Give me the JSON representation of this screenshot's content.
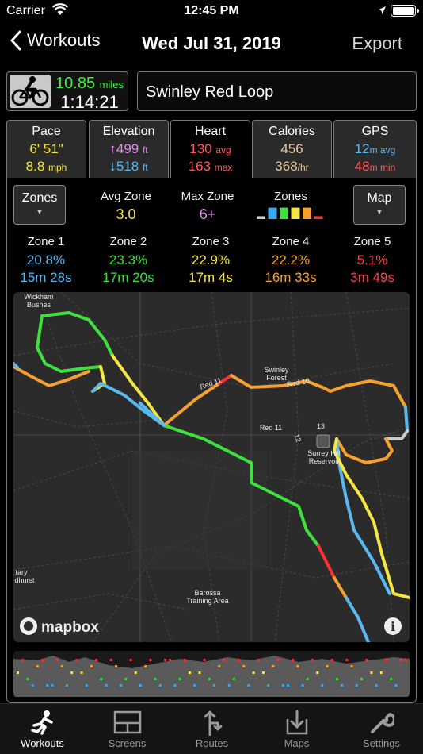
{
  "status_bar": {
    "carrier": "Carrier",
    "time": "12:45 PM"
  },
  "nav": {
    "back_label": "Workouts",
    "title": "Wed Jul 31, 2019",
    "export_label": "Export"
  },
  "summary": {
    "distance": "10.85",
    "distance_unit": "miles",
    "duration": "1:14:21",
    "route_name": "Swinley Red Loop"
  },
  "tabs": [
    {
      "label": "Pace",
      "line1": "6' 51\"",
      "line1_unit": "",
      "line2": "8.8",
      "line2_unit": "mph",
      "color1": "#f5e642",
      "color2": "#f5e642"
    },
    {
      "label": "Elevation",
      "line1": "↑499",
      "line1_unit": "ft",
      "line2": "↓518",
      "line2_unit": "ft",
      "color1": "#e58cf0",
      "color2": "#5ab8f0"
    },
    {
      "label": "Heart",
      "line1": "130",
      "line1_unit": "avg",
      "line2": "163",
      "line2_unit": "max",
      "color1": "#ff5b5b",
      "color2": "#ff5b5b"
    },
    {
      "label": "Calories",
      "line1": "456",
      "line1_unit": "",
      "line2": "368",
      "line2_unit": "/hr",
      "color1": "#e6c9a0",
      "color2": "#e6c9a0"
    },
    {
      "label": "GPS",
      "line1": "12",
      "line1_unit": "m avg",
      "line2": "48",
      "line2_unit": "m min",
      "color1": "#5ab8f0",
      "color2": "#ff5b5b"
    }
  ],
  "heart_panel": {
    "zones_button": "Zones",
    "map_button": "Map",
    "avg_zone_label": "Avg Zone",
    "avg_zone_value": "3.0",
    "max_zone_label": "Max Zone",
    "max_zone_value": "6+",
    "zones_label": "Zones",
    "zones": [
      {
        "name": "Zone 1",
        "percent": "20.8%",
        "time": "15m 28s",
        "color": "#5ab8f0"
      },
      {
        "name": "Zone 2",
        "percent": "23.3%",
        "time": "17m 20s",
        "color": "#3ee03e"
      },
      {
        "name": "Zone 3",
        "percent": "22.9%",
        "time": "17m 4s",
        "color": "#f5e642"
      },
      {
        "name": "Zone 4",
        "percent": "22.2%",
        "time": "16m 33s",
        "color": "#f5a030"
      },
      {
        "name": "Zone 5",
        "percent": "5.1%",
        "time": "3m 49s",
        "color": "#ff4040"
      }
    ],
    "zone_bar_colors": [
      "#cccccc",
      "#3aa8f0",
      "#3ee03e",
      "#f5e642",
      "#f5a030",
      "#ff3030"
    ],
    "zone_bar_levels": [
      0.2,
      0.8,
      0.8,
      0.8,
      0.8,
      0.2
    ]
  },
  "map": {
    "labels": [
      "Wickham",
      "Bushes",
      "Swinley",
      "Forest",
      "Red 11",
      "Red 11",
      "12",
      "13",
      "Surrey Hill",
      "Reservoir",
      "Barossa",
      "Training Area",
      "tary",
      "dhurst",
      "Red 10"
    ],
    "attribution": "mapbox"
  },
  "tabbar": [
    {
      "label": "Workouts",
      "icon": "runner-icon",
      "active": true
    },
    {
      "label": "Screens",
      "icon": "screens-icon",
      "active": false
    },
    {
      "label": "Routes",
      "icon": "routes-icon",
      "active": false
    },
    {
      "label": "Maps",
      "icon": "maps-icon",
      "active": false
    },
    {
      "label": "Settings",
      "icon": "wrench-icon",
      "active": false
    }
  ]
}
